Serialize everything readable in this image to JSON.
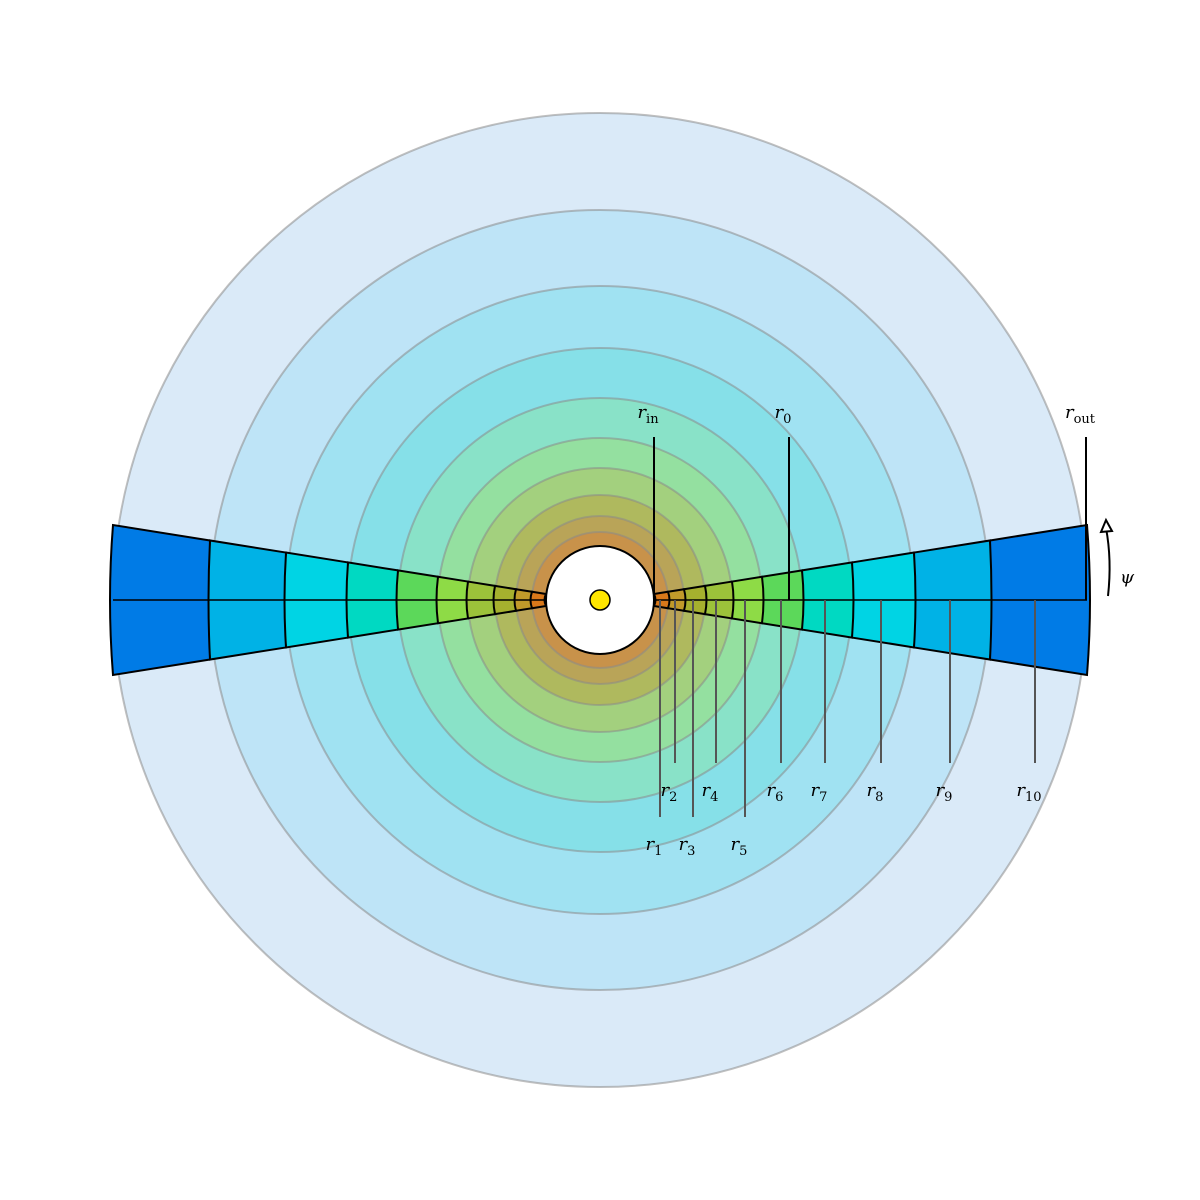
{
  "diagram": {
    "center_marker_color": "#FFE600",
    "shell_outline_color": "#8a8a8a",
    "radius_labels": [
      {
        "id": "rin",
        "sym": "r",
        "sub": "in"
      },
      {
        "id": "r0",
        "sym": "r",
        "sub": "0"
      },
      {
        "id": "rout",
        "sym": "r",
        "sub": "out"
      },
      {
        "id": "r1",
        "sym": "r",
        "sub": "1"
      },
      {
        "id": "r2",
        "sym": "r",
        "sub": "2"
      },
      {
        "id": "r3",
        "sym": "r",
        "sub": "3"
      },
      {
        "id": "r4",
        "sym": "r",
        "sub": "4"
      },
      {
        "id": "r5",
        "sym": "r",
        "sub": "5"
      },
      {
        "id": "r6",
        "sym": "r",
        "sub": "6"
      },
      {
        "id": "r7",
        "sym": "r",
        "sub": "7"
      },
      {
        "id": "r8",
        "sym": "r",
        "sub": "8"
      },
      {
        "id": "r9",
        "sym": "r",
        "sub": "9"
      },
      {
        "id": "r10",
        "sym": "r",
        "sub": "10"
      }
    ],
    "angle_label": "ψ",
    "shell_colors": [
      "#C8924A",
      "#B9A458",
      "#AFB95E",
      "#A3D07E",
      "#94E0A0",
      "#89E2C8",
      "#86E0E8",
      "#A0E2F2",
      "#BEE4F7",
      "#DAEAF8"
    ],
    "wedge_colors": [
      "#C8420A",
      "#D9781A",
      "#C09A2A",
      "#A5B02E",
      "#9CC23A",
      "#8EDB46",
      "#5CD85A",
      "#00D9C2",
      "#00D4E4",
      "#00B2E6",
      "#007BE6"
    ]
  }
}
